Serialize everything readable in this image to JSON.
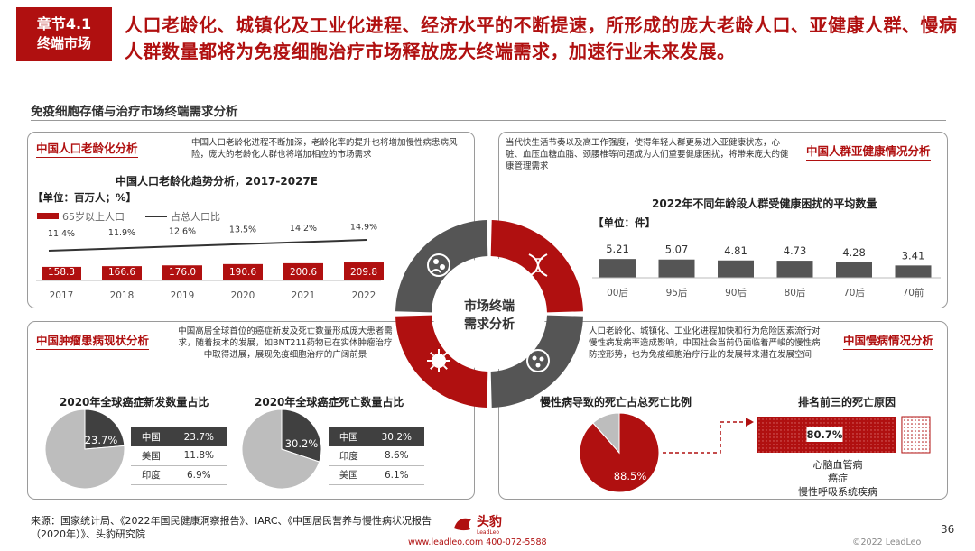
{
  "chapter": {
    "number": "章节4.1",
    "name": "终端市场"
  },
  "headline": "人口老龄化、城镇化及工业化进程、经济水平的不断提速，所形成的庞大老龄人口、亚健康人群、慢病人群数量都将为免疫细胞治疗市场释放庞大终端需求，加速行业未来发展。",
  "section_title": "免疫细胞存储与治疗市场终端需求分析",
  "center_label": [
    "市场终端",
    "需求分析"
  ],
  "colors": {
    "brand_red": "#b01010",
    "dark_gray": "#404040",
    "light_gray": "#bdbdbd",
    "mid_gray": "#555555"
  },
  "panels": {
    "aging": {
      "title": "中国人口老龄化分析",
      "note": "中国人口老龄化进程不断加深，老龄化率的提升也将增加慢性病患病风险，庞大的老龄化人群也将增加相应的市场需求"
    },
    "subhealth": {
      "title": "中国人群亚健康情况分析",
      "note": "当代快生活节奏以及高工作强度，使得年轻人群更易进入亚健康状态，心脏、血压血糖血脂、颈腰椎等问题成为人们重要健康困扰，将带来庞大的健康管理需求"
    },
    "tumor": {
      "title": "中国肿瘤患病现状分析",
      "note": "中国高居全球首位的癌症新发及死亡数量形成庞大患者需求，随着技术的发展，如BNT211药物已在实体肿瘤治疗中取得进展，展现免疫细胞治疗的广阔前景"
    },
    "chronic": {
      "title": "中国慢病情况分析",
      "note": "人口老龄化、城镇化、工业化进程加快和行为危险因素流行对慢性病发病率造成影响，中国社会当前仍面临着严峻的慢性病防控形势，也为免疫细胞治疗行业的发展带来潜在发展空间"
    }
  },
  "chart_data": [
    {
      "type": "bar",
      "title": "中国人口老龄化趋势分析，2017-2027E",
      "unit": "【单位：百万人；%】",
      "categories": [
        "2017",
        "2018",
        "2019",
        "2020",
        "2021",
        "2022"
      ],
      "series": [
        {
          "name": "65岁以上人口",
          "type": "bar",
          "values": [
            158.3,
            166.6,
            176.0,
            190.6,
            200.6,
            209.8
          ],
          "labels": [
            "158.3",
            "166.6",
            "176.0",
            "190.6",
            "200.6",
            "209.8"
          ]
        },
        {
          "name": "占总人口比",
          "type": "line",
          "values": [
            11.4,
            11.9,
            12.6,
            13.5,
            14.2,
            14.9
          ],
          "labels": [
            "11.4%",
            "11.9%",
            "12.6%",
            "13.5%",
            "14.2%",
            "14.9%"
          ]
        }
      ]
    },
    {
      "type": "bar",
      "title": "2022年不同年龄段人群受健康困扰的平均数量",
      "unit": "【单位：件】",
      "categories": [
        "00后",
        "95后",
        "90后",
        "80后",
        "70后",
        "70前"
      ],
      "values": [
        5.21,
        5.07,
        4.81,
        4.73,
        4.28,
        3.41
      ],
      "labels": [
        "5.21",
        "5.07",
        "4.81",
        "4.73",
        "4.28",
        "3.41"
      ]
    },
    {
      "type": "pie",
      "title": "2020年全球癌症新发数量占比",
      "slices": [
        {
          "label": "中国",
          "value": 23.7
        },
        {
          "label": "其他",
          "value": 76.3
        }
      ],
      "pie_label": "23.7%",
      "table": [
        [
          "中国",
          "23.7%"
        ],
        [
          "美国",
          "11.8%"
        ],
        [
          "印度",
          "6.9%"
        ]
      ]
    },
    {
      "type": "pie",
      "title": "2020年全球癌症死亡数量占比",
      "slices": [
        {
          "label": "中国",
          "value": 30.2
        },
        {
          "label": "其他",
          "value": 69.8
        }
      ],
      "pie_label": "30.2%",
      "table": [
        [
          "中国",
          "30.2%"
        ],
        [
          "印度",
          "8.6%"
        ],
        [
          "美国",
          "6.1%"
        ]
      ]
    },
    {
      "type": "pie",
      "title": "慢性病导致的死亡占总死亡比例",
      "slices": [
        {
          "label": "慢性病",
          "value": 88.5
        },
        {
          "label": "其他",
          "value": 11.5
        }
      ],
      "pie_label": "88.5%"
    },
    {
      "type": "bar",
      "title": "排名前三的死亡原因",
      "values": [
        80.7
      ],
      "label": "80.7%",
      "causes": [
        "心脑血管病",
        "癌症",
        "慢性呼吸系统疾病"
      ]
    }
  ],
  "footer": {
    "source": "来源：国家统计局、《2022年国民健康洞察报告》、IARC、《中国居民营养与慢性病状况报告（2020年）》、头豹研究院",
    "url_line": "www.leadleo.com   400-072-5588",
    "copyright": "©2022 LeadLeo",
    "page": "36",
    "logo_text": "头豹",
    "logo_sub": "LeadLeo"
  }
}
